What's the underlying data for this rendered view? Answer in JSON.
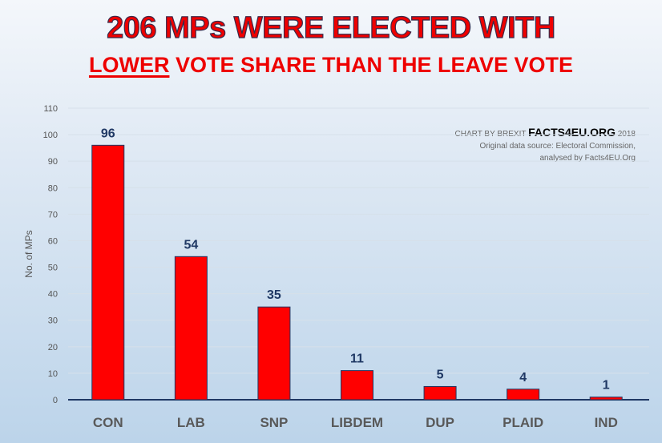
{
  "title_line1": "206 MPs WERE ELECTED WITH",
  "title_line2_underlined": "LOWER",
  "title_line2_rest": " VOTE SHARE THAN THE LEAVE VOTE",
  "credit": {
    "prefix": "CHART BY BREXIT ",
    "brand": "FACTS4EU.ORG",
    "year": " 2018",
    "line2": "Original data source: Electoral Commission,",
    "line3": "analysed by Facts4EU.Org"
  },
  "chart_data": {
    "type": "bar",
    "categories": [
      "CON",
      "LAB",
      "SNP",
      "LIBDEM",
      "DUP",
      "PLAID",
      "IND"
    ],
    "values": [
      96,
      54,
      35,
      11,
      5,
      4,
      1
    ],
    "ylabel": "No. of MPs",
    "ylim": [
      0,
      110
    ],
    "yticks": [
      0,
      10,
      20,
      30,
      40,
      50,
      60,
      70,
      80,
      90,
      100,
      110
    ],
    "grid": true,
    "bar_color": "#ff0000",
    "label_color": "#1f3864"
  }
}
